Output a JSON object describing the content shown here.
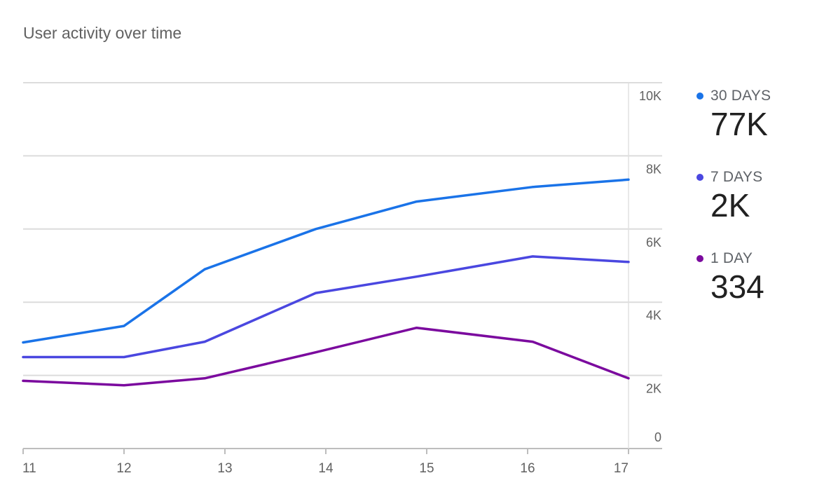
{
  "title": "User activity over time",
  "chart_data": {
    "type": "line",
    "x": [
      11,
      12,
      13,
      14,
      15,
      16,
      17
    ],
    "x_tick_labels": [
      "11",
      "12",
      "13",
      "14",
      "15",
      "16",
      "17"
    ],
    "y_tick_labels": [
      "0",
      "2K",
      "4K",
      "6K",
      "8K",
      "10K"
    ],
    "ylim": [
      0,
      10000
    ],
    "grid": true,
    "legend_position": "right",
    "series": [
      {
        "name": "30 DAYS",
        "total": "77K",
        "color": "#1a73e8",
        "points": [
          [
            11,
            2900
          ],
          [
            12,
            3350
          ],
          [
            12.8,
            4900
          ],
          [
            13.9,
            6000
          ],
          [
            14.9,
            6750
          ],
          [
            16.05,
            7150
          ],
          [
            17,
            7350
          ]
        ]
      },
      {
        "name": "7 DAYS",
        "total": "2K",
        "color": "#4a47e0",
        "points": [
          [
            11,
            2500
          ],
          [
            12,
            2500
          ],
          [
            12.8,
            2920
          ],
          [
            13.9,
            4250
          ],
          [
            14.9,
            4700
          ],
          [
            16.05,
            5250
          ],
          [
            17,
            5100
          ]
        ]
      },
      {
        "name": "1 DAY",
        "total": "334",
        "color": "#7b0a9e",
        "points": [
          [
            11,
            1850
          ],
          [
            12,
            1730
          ],
          [
            12.8,
            1920
          ],
          [
            13.9,
            2630
          ],
          [
            14.9,
            3300
          ],
          [
            16.05,
            2920
          ],
          [
            17,
            1920
          ]
        ]
      }
    ]
  }
}
